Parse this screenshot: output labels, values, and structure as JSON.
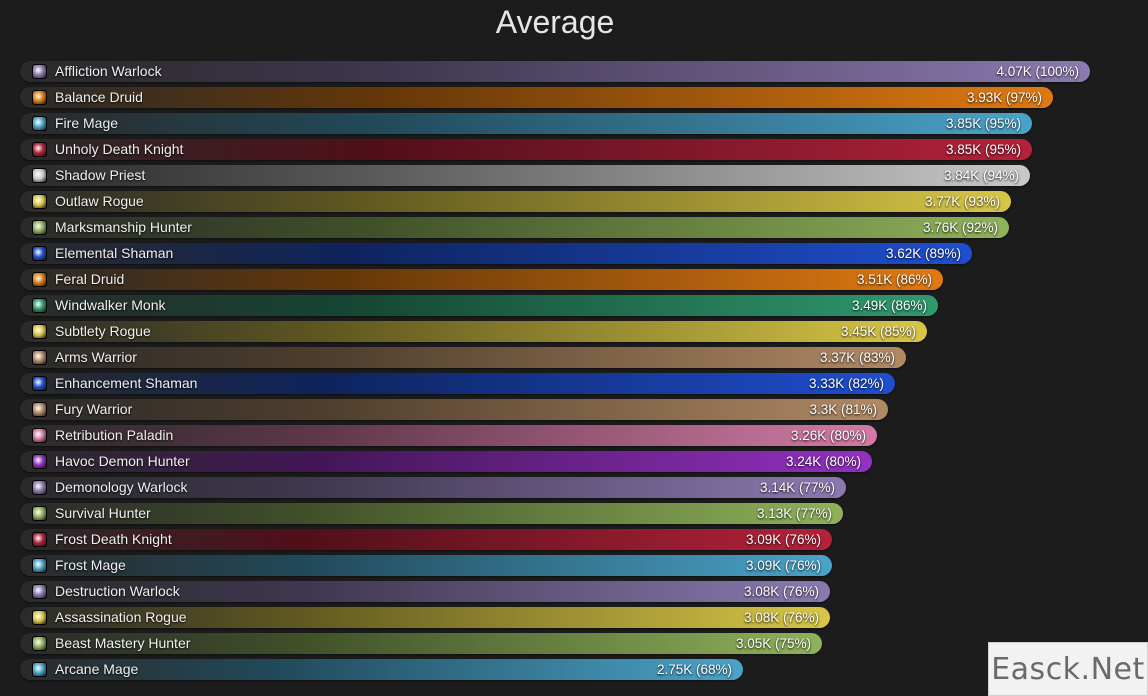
{
  "chart_data": {
    "type": "bar",
    "orientation": "horizontal",
    "title": "Average",
    "xlim": [
      0,
      4.07
    ],
    "unit": "K",
    "grid": false,
    "legend": "none",
    "categories": [
      {
        "name": "Affliction Warlock",
        "value": 4.07,
        "label": "4.07K (100%)",
        "color": "#8b7ab0",
        "icon": "affliction-warlock-icon"
      },
      {
        "name": "Balance Druid",
        "value": 3.93,
        "label": "3.93K (97%)",
        "color": "#e07a12",
        "icon": "balance-druid-icon"
      },
      {
        "name": "Fire Mage",
        "value": 3.85,
        "label": "3.85K (95%)",
        "color": "#4aa3c9",
        "icon": "fire-mage-icon"
      },
      {
        "name": "Unholy Death Knight",
        "value": 3.85,
        "label": "3.85K (95%)",
        "color": "#b4223a",
        "icon": "unholy-death-knight-icon"
      },
      {
        "name": "Shadow Priest",
        "value": 3.84,
        "label": "3.84K (94%)",
        "color": "#c9c9c9",
        "icon": "shadow-priest-icon"
      },
      {
        "name": "Outlaw Rogue",
        "value": 3.77,
        "label": "3.77K (93%)",
        "color": "#d8c646",
        "icon": "outlaw-rogue-icon"
      },
      {
        "name": "Marksmanship Hunter",
        "value": 3.76,
        "label": "3.76K (92%)",
        "color": "#8fb25a",
        "icon": "marksmanship-hunter-icon"
      },
      {
        "name": "Elemental Shaman",
        "value": 3.62,
        "label": "3.62K (89%)",
        "color": "#1f4fd0",
        "icon": "elemental-shaman-icon"
      },
      {
        "name": "Feral Druid",
        "value": 3.51,
        "label": "3.51K (86%)",
        "color": "#e07a12",
        "icon": "feral-druid-icon"
      },
      {
        "name": "Windwalker Monk",
        "value": 3.49,
        "label": "3.49K (86%)",
        "color": "#2f9a6e",
        "icon": "windwalker-monk-icon"
      },
      {
        "name": "Subtlety Rogue",
        "value": 3.45,
        "label": "3.45K (85%)",
        "color": "#d8c646",
        "icon": "subtlety-rogue-icon"
      },
      {
        "name": "Arms Warrior",
        "value": 3.37,
        "label": "3.37K (83%)",
        "color": "#b08a64",
        "icon": "arms-warrior-icon"
      },
      {
        "name": "Enhancement Shaman",
        "value": 3.33,
        "label": "3.33K (82%)",
        "color": "#1f4fd0",
        "icon": "enhancement-shaman-icon"
      },
      {
        "name": "Fury Warrior",
        "value": 3.3,
        "label": "3.3K (81%)",
        "color": "#b08a64",
        "icon": "fury-warrior-icon"
      },
      {
        "name": "Retribution Paladin",
        "value": 3.26,
        "label": "3.26K (80%)",
        "color": "#d27ba5",
        "icon": "retribution-paladin-icon"
      },
      {
        "name": "Havoc Demon Hunter",
        "value": 3.24,
        "label": "3.24K (80%)",
        "color": "#9430c2",
        "icon": "havoc-demon-hunter-icon"
      },
      {
        "name": "Demonology Warlock",
        "value": 3.14,
        "label": "3.14K (77%)",
        "color": "#8b7ab0",
        "icon": "demonology-warlock-icon"
      },
      {
        "name": "Survival Hunter",
        "value": 3.13,
        "label": "3.13K (77%)",
        "color": "#8fb25a",
        "icon": "survival-hunter-icon"
      },
      {
        "name": "Frost Death Knight",
        "value": 3.09,
        "label": "3.09K (76%)",
        "color": "#b4223a",
        "icon": "frost-death-knight-icon"
      },
      {
        "name": "Frost Mage",
        "value": 3.09,
        "label": "3.09K (76%)",
        "color": "#4aa3c9",
        "icon": "frost-mage-icon"
      },
      {
        "name": "Destruction Warlock",
        "value": 3.08,
        "label": "3.08K (76%)",
        "color": "#8b7ab0",
        "icon": "destruction-warlock-icon"
      },
      {
        "name": "Assassination Rogue",
        "value": 3.08,
        "label": "3.08K (76%)",
        "color": "#d8c646",
        "icon": "assassination-rogue-icon"
      },
      {
        "name": "Beast Mastery Hunter",
        "value": 3.05,
        "label": "3.05K (75%)",
        "color": "#8fb25a",
        "icon": "beast-mastery-hunter-icon"
      },
      {
        "name": "Arcane Mage",
        "value": 2.75,
        "label": "2.75K (68%)",
        "color": "#4aa3c9",
        "icon": "arcane-mage-icon"
      }
    ]
  },
  "watermark": "Easck.Net"
}
